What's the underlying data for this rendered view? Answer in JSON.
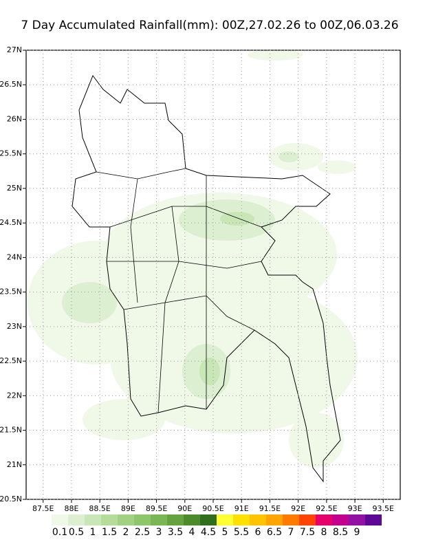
{
  "title": "7 Day Accumulated Rainfall(mm): 00Z,27.02.26 to 00Z,06.03.26",
  "map": {
    "xlim": [
      87.2,
      93.8
    ],
    "ylim": [
      20.5,
      27
    ],
    "xticks": [
      {
        "value": 87.5,
        "label": "87.5E"
      },
      {
        "value": 88,
        "label": "88E"
      },
      {
        "value": 88.5,
        "label": "88.5E"
      },
      {
        "value": 89,
        "label": "89E"
      },
      {
        "value": 89.5,
        "label": "89.5E"
      },
      {
        "value": 90,
        "label": "90E"
      },
      {
        "value": 90.5,
        "label": "90.5E"
      },
      {
        "value": 91,
        "label": "91E"
      },
      {
        "value": 91.5,
        "label": "91.5E"
      },
      {
        "value": 92,
        "label": "92E"
      },
      {
        "value": 92.5,
        "label": "92.5E"
      },
      {
        "value": 93,
        "label": "93E"
      },
      {
        "value": 93.5,
        "label": "93.5E"
      }
    ],
    "yticks": [
      {
        "value": 20.5,
        "label": "20.5N"
      },
      {
        "value": 21,
        "label": "21N"
      },
      {
        "value": 21.5,
        "label": "21.5N"
      },
      {
        "value": 22,
        "label": "22N"
      },
      {
        "value": 22.5,
        "label": "22.5N"
      },
      {
        "value": 23,
        "label": "23N"
      },
      {
        "value": 23.5,
        "label": "23.5N"
      },
      {
        "value": 24,
        "label": "24N"
      },
      {
        "value": 24.5,
        "label": "24.5N"
      },
      {
        "value": 25,
        "label": "25N"
      },
      {
        "value": 25.5,
        "label": "25.5N"
      },
      {
        "value": 26,
        "label": "26N"
      },
      {
        "value": 26.5,
        "label": "26.5N"
      },
      {
        "value": 27,
        "label": "27N"
      }
    ],
    "grid": true
  },
  "legend": {
    "levels": [
      0.1,
      0.5,
      1,
      1.5,
      2,
      2.5,
      3,
      3.5,
      4,
      4.5,
      5,
      5.5,
      6,
      6.5,
      7,
      7.5,
      8,
      8.5,
      9
    ],
    "colors": [
      "#f0f8e8",
      "#dcefd0",
      "#c9e6b6",
      "#b5dc9b",
      "#a2d184",
      "#8ec66c",
      "#7ab655",
      "#66a23e",
      "#4c8b2c",
      "#2f6d1f",
      "#ffff33",
      "#ffe100",
      "#ffc300",
      "#ffa400",
      "#ff7b00",
      "#ff4300",
      "#e6006c",
      "#c4008f",
      "#9112a3",
      "#5c0a95"
    ]
  }
}
